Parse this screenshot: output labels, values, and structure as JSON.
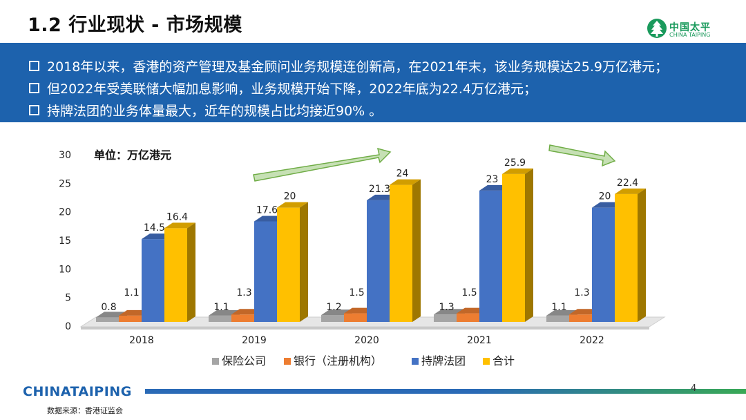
{
  "slide": {
    "title": "1.2 行业现状 - 市场规模",
    "logo_cn": "中国太平",
    "logo_en": "CHINA TAIPING",
    "bullets": [
      "2018年以来，香港的资产管理及基金顾问业务规模连创新高，在2021年末，该业务规模达25.9万亿港元；",
      "但2022年受美联储大幅加息影响，业务规模开始下降，2022年底为22.4万亿港元；",
      "持牌法团的业务体量最大，近年的规模占比均接近90% 。"
    ],
    "footer_brand_a": "CHINA",
    "footer_brand_b": "TAIPING",
    "page_number": "4",
    "source": "数据来源：香港证监会"
  },
  "colors": {
    "band": "#1d62ad",
    "accent_green": "#1a9a5c",
    "arrow_fill": "#c6e0b4",
    "arrow_stroke": "#70ad47"
  },
  "chart_data": {
    "type": "bar",
    "unit_label": "单位：万亿港元",
    "categories": [
      "2018",
      "2019",
      "2020",
      "2021",
      "2022"
    ],
    "ylim": [
      0,
      30
    ],
    "yticks": [
      0,
      5,
      10,
      15,
      20,
      25,
      30
    ],
    "series": [
      {
        "name": "保险公司",
        "color": "#a5a5a5",
        "values": [
          0.8,
          1.1,
          1.2,
          1.3,
          1.1
        ]
      },
      {
        "name": "银行（注册机构）",
        "color": "#ed7d31",
        "values": [
          1.1,
          1.3,
          1.5,
          1.5,
          1.3
        ]
      },
      {
        "name": "持牌法团",
        "color": "#4472c4",
        "values": [
          14.5,
          17.6,
          21.3,
          23,
          20
        ]
      },
      {
        "name": "合计",
        "color": "#ffc000",
        "values": [
          16.4,
          20,
          24,
          25.9,
          22.4
        ]
      }
    ],
    "legend_position": "bottom"
  }
}
